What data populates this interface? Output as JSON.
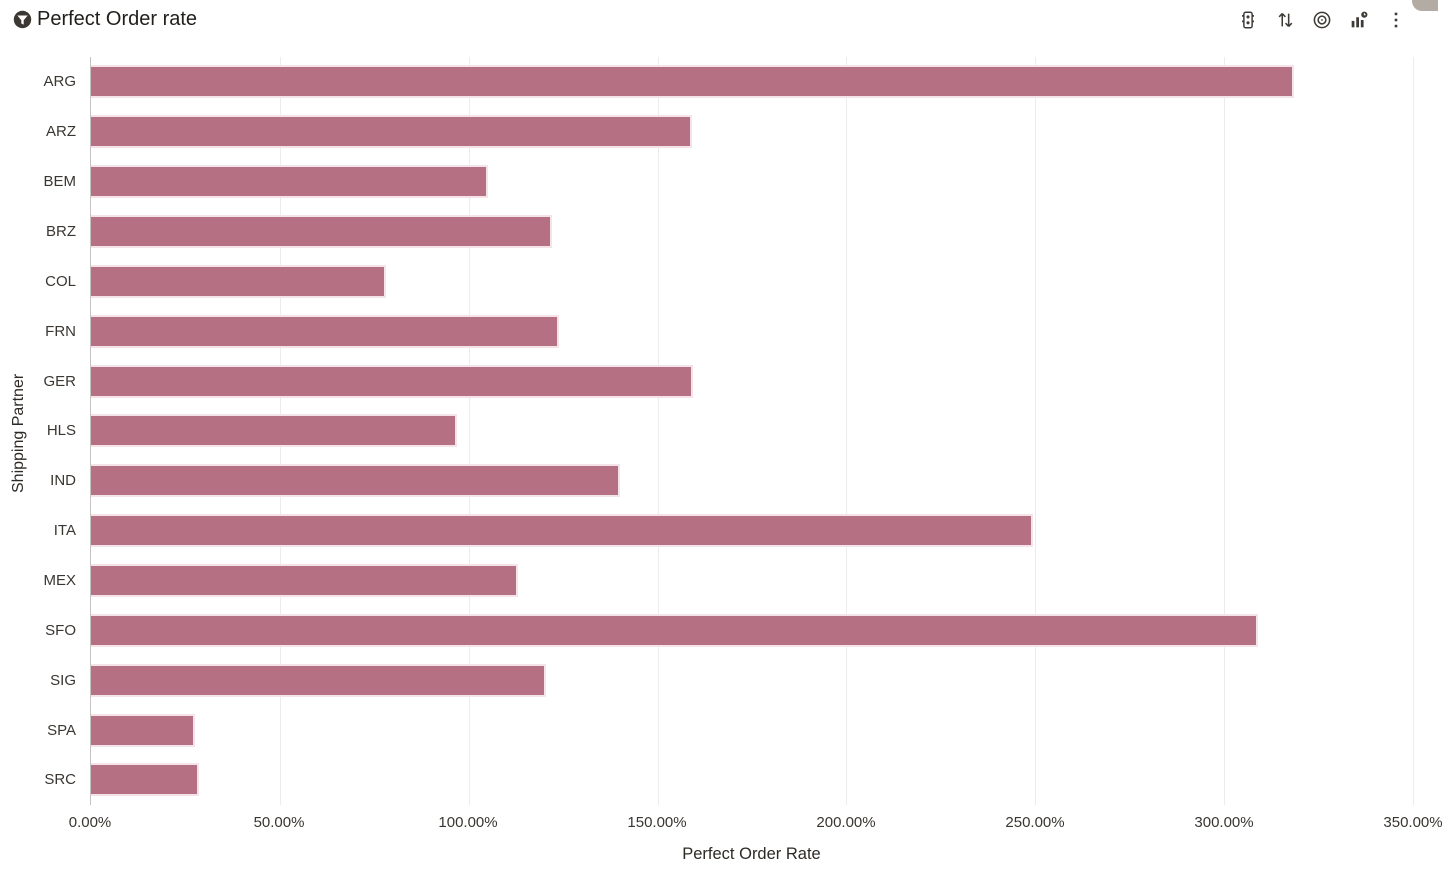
{
  "header": {
    "title": "Perfect Order rate",
    "filter_icon": "funnel-in-circle",
    "toolbar": [
      {
        "name": "status-traffic-light-icon",
        "glyph": "traffic-light"
      },
      {
        "name": "sort-icon",
        "glyph": "arrows-up-down"
      },
      {
        "name": "target-icon",
        "glyph": "bullseye"
      },
      {
        "name": "time-series-chart-icon",
        "glyph": "bar-chart-clock"
      },
      {
        "name": "more-options-icon",
        "glyph": "kebab-menu"
      }
    ]
  },
  "chart_data": {
    "type": "bar",
    "orientation": "horizontal",
    "title": "Perfect Order rate",
    "xlabel": "Perfect Order Rate",
    "ylabel": "Shipping Partner",
    "xlim": [
      0,
      350
    ],
    "unit": "%",
    "grid": "vertical",
    "legend": "none",
    "ticks": [
      {
        "label": "0.00%",
        "value": 0
      },
      {
        "label": "50.00%",
        "value": 50
      },
      {
        "label": "100.00%",
        "value": 100
      },
      {
        "label": "150.00%",
        "value": 150
      },
      {
        "label": "200.00%",
        "value": 200
      },
      {
        "label": "250.00%",
        "value": 250
      },
      {
        "label": "300.00%",
        "value": 300
      },
      {
        "label": "350.00%",
        "value": 350
      }
    ],
    "categories": [
      "ARG",
      "ARZ",
      "BEM",
      "BRZ",
      "COL",
      "FRN",
      "GER",
      "HLS",
      "IND",
      "ITA",
      "MEX",
      "SFO",
      "SIG",
      "SPA",
      "SRC"
    ],
    "values": [
      318.5,
      159,
      105,
      122,
      78,
      124,
      159.5,
      97,
      140,
      249.5,
      113,
      309,
      120.5,
      27.5,
      28.5
    ],
    "colors": {
      "bar": "#b57183",
      "bar_border": "#f4e3e8",
      "gridline": "#ececec",
      "axis_line": "#c6c4c2",
      "text": "#332f2c"
    }
  }
}
